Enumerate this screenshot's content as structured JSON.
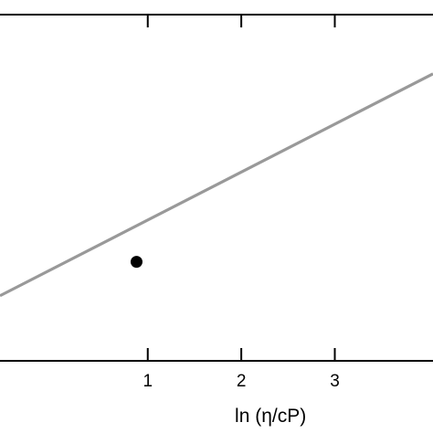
{
  "chart_data": {
    "type": "scatter",
    "xlabel": "ln (η/cP)",
    "ylabel": "",
    "title": "",
    "xlim": [
      -0.58,
      4.05
    ],
    "ylim": [
      0,
      1
    ],
    "x_ticks": [
      {
        "value": 1,
        "label": "1"
      },
      {
        "value": 2,
        "label": "2"
      },
      {
        "value": 3,
        "label": "3"
      }
    ],
    "series": [
      {
        "kind": "points",
        "x": [
          0.88
        ],
        "y": [
          0.286
        ],
        "color": "#000000"
      },
      {
        "kind": "fit-line",
        "x": [
          -0.58,
          4.05
        ],
        "y": [
          0.188,
          0.829
        ],
        "color": "#999999"
      }
    ],
    "grid": false,
    "legend": "none"
  }
}
